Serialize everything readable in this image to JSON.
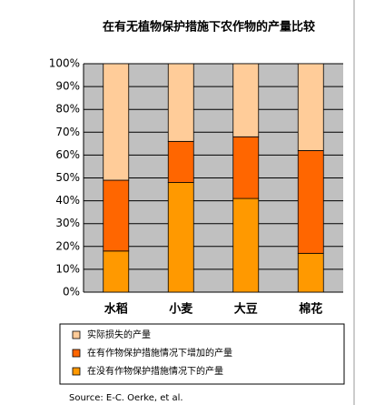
{
  "chart_data": {
    "type": "stacked_bar",
    "title": "在有无植物保护措施下农作物的产量比较",
    "categories": [
      "水稻",
      "小麦",
      "大豆",
      "棉花"
    ],
    "series": [
      {
        "name": "在没有作物保护措施情况下的产量",
        "color": "#ff9900",
        "values": [
          18,
          48,
          41,
          17
        ]
      },
      {
        "name": "在有作物保护措施情况下增加的产量",
        "color": "#ff6600",
        "values": [
          31,
          18,
          27,
          45
        ]
      },
      {
        "name": "实际损失的产量",
        "color": "#ffcc99",
        "values": [
          51,
          34,
          32,
          38
        ]
      }
    ],
    "ylim": [
      0,
      100
    ],
    "yticks": [
      {
        "value": 0,
        "label": "0%"
      },
      {
        "value": 10,
        "label": "10%"
      },
      {
        "value": 20,
        "label": "20%"
      },
      {
        "value": 30,
        "label": "30%"
      },
      {
        "value": 40,
        "label": "40%"
      },
      {
        "value": 50,
        "label": "50%"
      },
      {
        "value": 60,
        "label": "60%"
      },
      {
        "value": 70,
        "label": "70%"
      },
      {
        "value": 80,
        "label": "80%"
      },
      {
        "value": 90,
        "label": "90%"
      },
      {
        "value": 100,
        "label": "100%"
      }
    ],
    "grid": true,
    "source": "Source: E-C. Oerke, et al."
  }
}
